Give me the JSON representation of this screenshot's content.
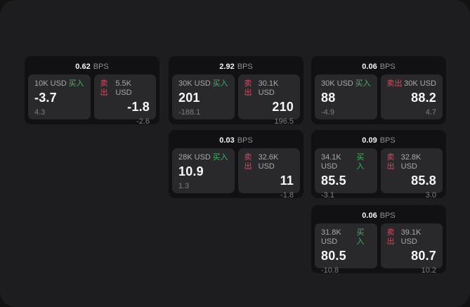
{
  "labels": {
    "bps_unit": "BPS",
    "buy": "买入",
    "sell": "卖出"
  },
  "colors": {
    "window_bg": "#1d1d1f",
    "card_bg": "#111113",
    "panel_bg": "#29292b",
    "buy_green": "#42b363",
    "sell_red": "#d6495f"
  },
  "cards": [
    {
      "bps": "0.62",
      "buy": {
        "size": "10K USD",
        "price": "-3.7",
        "delta": "4.3"
      },
      "sell": {
        "size": "5.5K USD",
        "price": "-1.8",
        "delta": "-2.6"
      }
    },
    {
      "bps": "2.92",
      "buy": {
        "size": "30K USD",
        "price": "201",
        "delta": "-188.1"
      },
      "sell": {
        "size": "30.1K USD",
        "price": "210",
        "delta": "196.5"
      }
    },
    {
      "bps": "0.06",
      "buy": {
        "size": "30K USD",
        "price": "88",
        "delta": "-4.9"
      },
      "sell": {
        "size": "30K USD",
        "price": "88.2",
        "delta": "4.7"
      }
    },
    {
      "bps": "0.03",
      "buy": {
        "size": "28K USD",
        "price": "10.9",
        "delta": "1.3"
      },
      "sell": {
        "size": "32.6K USD",
        "price": "11",
        "delta": "-1.8"
      }
    },
    {
      "bps": "0.09",
      "buy": {
        "size": "34.1K USD",
        "price": "85.5",
        "delta": "-3.1"
      },
      "sell": {
        "size": "32.8K USD",
        "price": "85.8",
        "delta": "3.0"
      }
    },
    {
      "bps": "0.06",
      "buy": {
        "size": "31.8K USD",
        "price": "80.5",
        "delta": "-10.8"
      },
      "sell": {
        "size": "39.1K USD",
        "price": "80.7",
        "delta": "10.2"
      }
    }
  ]
}
